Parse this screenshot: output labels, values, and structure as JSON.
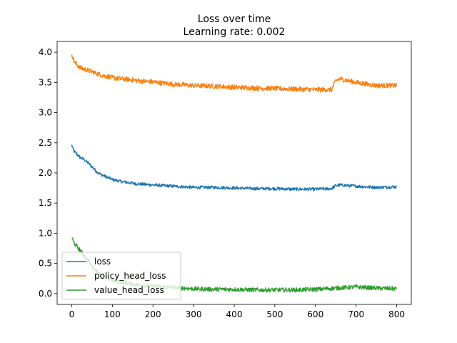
{
  "chart_data": {
    "type": "line",
    "title": "Loss over time",
    "subtitle": "Learning rate: 0.002",
    "xlabel": "",
    "ylabel": "",
    "xlim": [
      -36,
      836
    ],
    "ylim": [
      -0.18,
      4.18
    ],
    "xticks": [
      "0",
      "100",
      "200",
      "300",
      "400",
      "500",
      "600",
      "700",
      "800"
    ],
    "yticks": [
      "0.0",
      "0.5",
      "1.0",
      "1.5",
      "2.0",
      "2.5",
      "3.0",
      "3.5",
      "4.0"
    ],
    "grid": false,
    "legend": "lower-left",
    "series": [
      {
        "name": "loss",
        "color": "#1f77b4",
        "x": [
          0,
          5,
          10,
          20,
          30,
          40,
          50,
          60,
          70,
          80,
          90,
          100,
          120,
          140,
          160,
          180,
          200,
          250,
          300,
          350,
          400,
          450,
          500,
          550,
          600,
          640,
          650,
          660,
          700,
          750,
          800
        ],
        "y": [
          2.46,
          2.36,
          2.33,
          2.26,
          2.22,
          2.17,
          2.1,
          2.03,
          1.98,
          1.95,
          1.92,
          1.89,
          1.86,
          1.84,
          1.82,
          1.81,
          1.8,
          1.78,
          1.76,
          1.76,
          1.75,
          1.74,
          1.74,
          1.73,
          1.73,
          1.74,
          1.79,
          1.8,
          1.78,
          1.76,
          1.77
        ],
        "noise": 0.025
      },
      {
        "name": "policy_head_loss",
        "color": "#ff7f0e",
        "x": [
          0,
          5,
          10,
          20,
          30,
          40,
          50,
          60,
          80,
          100,
          120,
          140,
          160,
          180,
          200,
          250,
          300,
          350,
          400,
          450,
          500,
          550,
          600,
          640,
          650,
          660,
          700,
          750,
          800
        ],
        "y": [
          3.98,
          3.86,
          3.81,
          3.75,
          3.72,
          3.7,
          3.68,
          3.65,
          3.61,
          3.58,
          3.56,
          3.55,
          3.53,
          3.52,
          3.51,
          3.47,
          3.45,
          3.44,
          3.42,
          3.41,
          3.4,
          3.39,
          3.38,
          3.38,
          3.53,
          3.56,
          3.5,
          3.45,
          3.45
        ],
        "noise": 0.04
      },
      {
        "name": "value_head_loss",
        "color": "#2ca02c",
        "x": [
          0,
          5,
          10,
          20,
          30,
          40,
          50,
          60,
          80,
          100,
          120,
          140,
          160,
          180,
          200,
          250,
          300,
          350,
          400,
          450,
          500,
          550,
          600,
          650,
          700,
          750,
          800
        ],
        "y": [
          0.93,
          0.85,
          0.8,
          0.72,
          0.64,
          0.55,
          0.46,
          0.38,
          0.28,
          0.22,
          0.19,
          0.17,
          0.15,
          0.13,
          0.12,
          0.1,
          0.08,
          0.07,
          0.07,
          0.06,
          0.06,
          0.06,
          0.07,
          0.09,
          0.11,
          0.09,
          0.08
        ],
        "noise": 0.035
      }
    ]
  }
}
